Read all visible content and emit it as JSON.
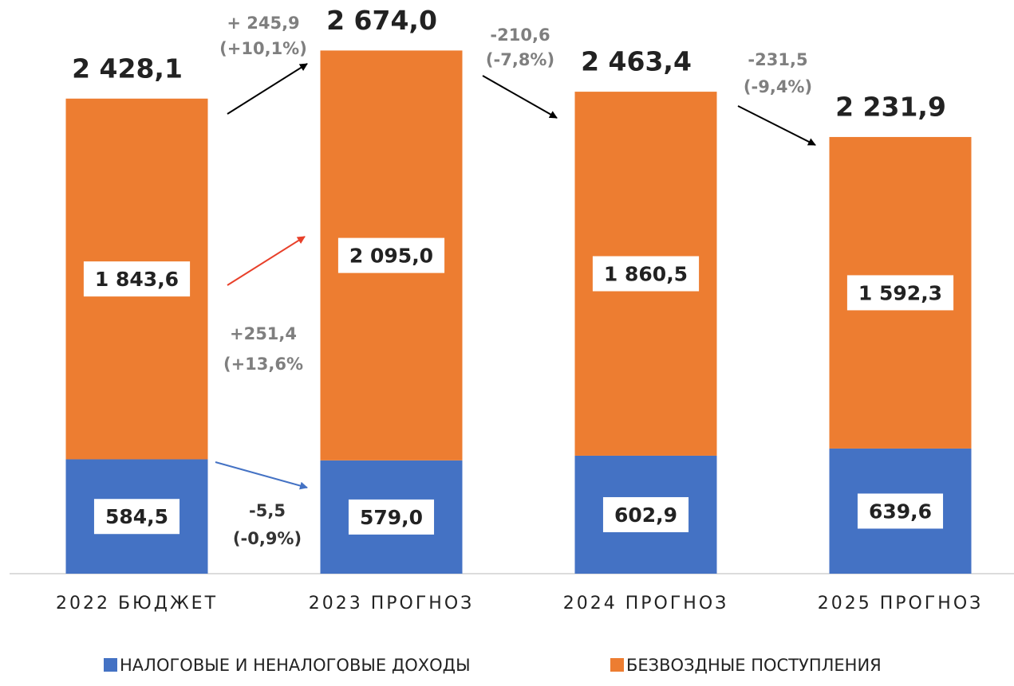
{
  "chart_data": {
    "type": "stacked_bar",
    "categories": [
      "2022 БЮДЖЕТ",
      "2023 ПРОГНОЗ",
      "2024 ПРОГНОЗ",
      "2025 ПРОГНОЗ"
    ],
    "series": [
      {
        "name": "НАЛОГОВЫЕ И НЕНАЛОГОВЫЕ ДОХОДЫ",
        "color": "#4472c4",
        "values": [
          584.5,
          579.0,
          602.9,
          639.6
        ],
        "value_labels": [
          "584,5",
          "579,0",
          "602,9",
          "639,6"
        ]
      },
      {
        "name": "БЕЗВОЗДНЫЕ ПОСТУПЛЕНИЯ",
        "color": "#ed7d31",
        "values": [
          1843.6,
          2095.0,
          1860.5,
          1592.3
        ],
        "value_labels": [
          "1 843,6",
          "2 095,0",
          "1 860,5",
          "1 592,3"
        ]
      }
    ],
    "totals": [
      2428.1,
      2674.0,
      2463.4,
      2231.9
    ],
    "total_labels": [
      "2 428,1",
      "2 674,0",
      "2 463,4",
      "2 231,9"
    ],
    "annotations": [
      [
        "+ 245,9",
        "(+10,1%)"
      ],
      [
        "-210,6",
        "(-7,8%)"
      ],
      [
        "-231,5",
        "(-9,4%)"
      ],
      [
        "+251,4",
        "(+13,6%"
      ],
      [
        "-5,5",
        "(-0,9%)"
      ]
    ],
    "ylim": [
      0,
      2700
    ],
    "legend": "bottom"
  }
}
